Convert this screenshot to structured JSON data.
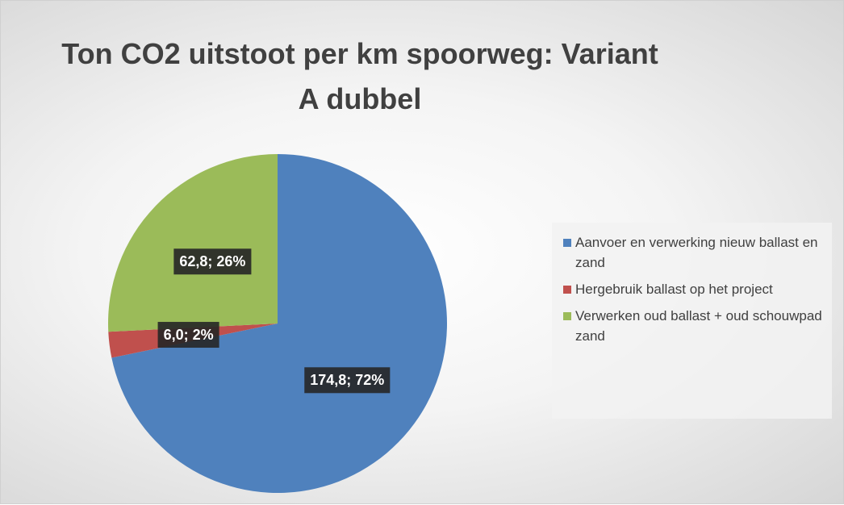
{
  "chart_data": {
    "type": "pie",
    "title": "Ton CO2 uitstoot per km spoorweg: Variant A dubbel",
    "categories": [
      "Aanvoer en verwerking nieuw ballast en zand",
      "Hergebruik ballast op het project",
      "Verwerken oud ballast + oud schouwpad zand"
    ],
    "values": [
      174.8,
      6.0,
      62.8
    ],
    "value_labels": [
      "174,8; 72%",
      "6,0; 2%",
      "62,8; 26%"
    ],
    "colors": [
      "#4f81bd",
      "#c0504d",
      "#9bbb59"
    ],
    "legend": "right"
  }
}
